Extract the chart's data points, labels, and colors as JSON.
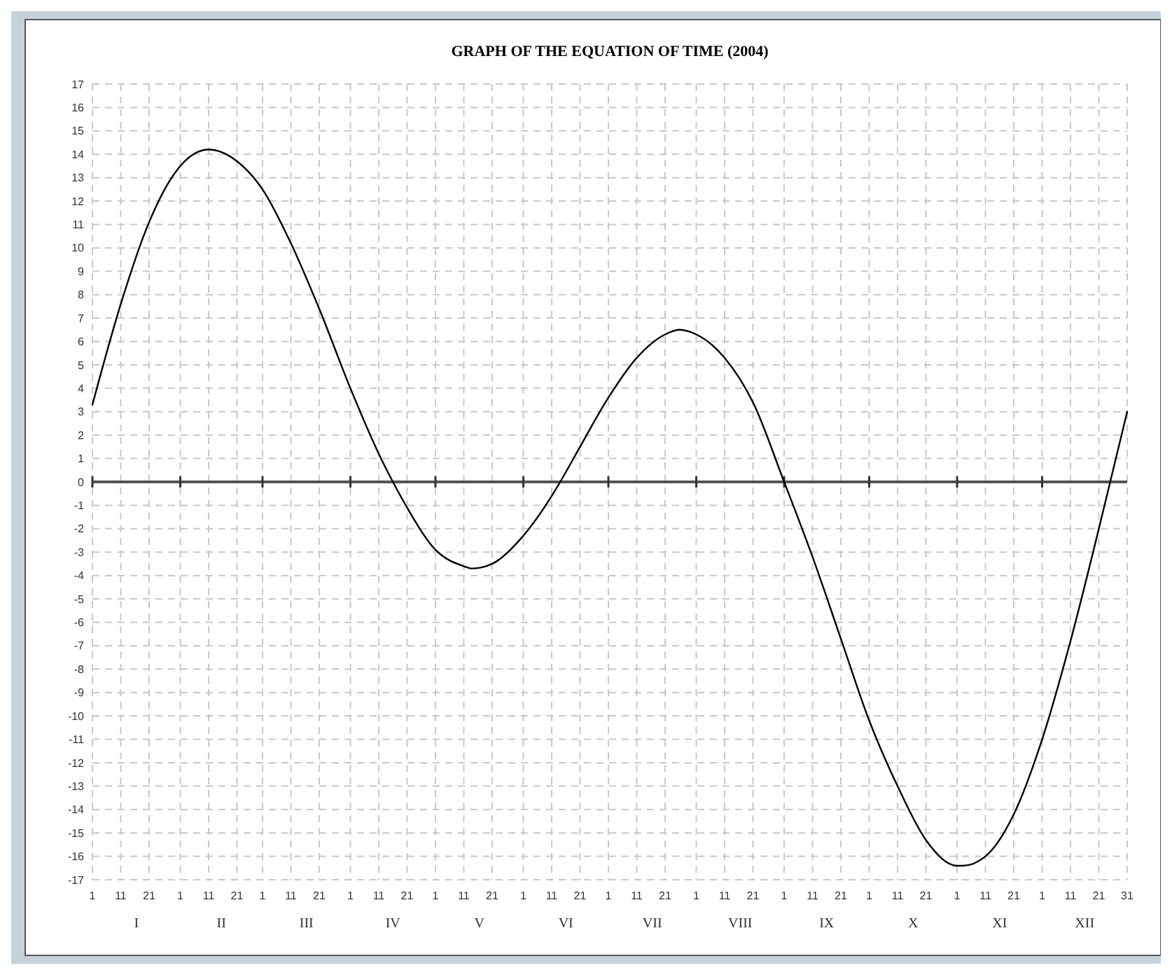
{
  "chart_data": {
    "type": "line",
    "title": "GRAPH OF THE EQUATION OF TIME (2004)",
    "x": [
      "2004-01-01",
      "2004-01-11",
      "2004-01-21",
      "2004-02-01",
      "2004-02-11",
      "2004-02-21",
      "2004-03-01",
      "2004-03-11",
      "2004-03-21",
      "2004-04-01",
      "2004-04-11",
      "2004-04-16",
      "2004-04-21",
      "2004-05-01",
      "2004-05-11",
      "2004-05-14",
      "2004-05-21",
      "2004-06-01",
      "2004-06-11",
      "2004-06-14",
      "2004-06-21",
      "2004-07-01",
      "2004-07-11",
      "2004-07-21",
      "2004-07-26",
      "2004-08-01",
      "2004-08-11",
      "2004-08-21",
      "2004-09-01",
      "2004-09-11",
      "2004-09-21",
      "2004-10-01",
      "2004-10-11",
      "2004-10-21",
      "2004-11-01",
      "2004-11-03",
      "2004-11-11",
      "2004-11-21",
      "2004-12-01",
      "2004-12-11",
      "2004-12-21",
      "2004-12-25",
      "2004-12-31"
    ],
    "series": [
      {
        "color": "#000000",
        "values": [
          3.3,
          7.6,
          11.1,
          13.5,
          14.2,
          13.7,
          12.5,
          10.2,
          7.4,
          4.0,
          1.2,
          0.0,
          -1.1,
          -2.9,
          -3.6,
          -3.7,
          -3.5,
          -2.3,
          -0.6,
          0.0,
          1.5,
          3.6,
          5.3,
          6.3,
          6.5,
          6.3,
          5.3,
          3.4,
          0.0,
          -3.2,
          -6.7,
          -10.2,
          -13.0,
          -15.3,
          -16.4,
          -16.4,
          -16.0,
          -14.2,
          -11.0,
          -6.8,
          -2.0,
          0.0,
          3.0
        ]
      }
    ],
    "xlim": [
      "2004-01-01",
      "2004-12-31"
    ],
    "xticks": [
      {
        "value": "2004-01-01",
        "label": "1"
      },
      {
        "value": "2004-01-11",
        "label": "11"
      },
      {
        "value": "2004-01-21",
        "label": "21"
      },
      {
        "value": "2004-02-01",
        "label": "1"
      },
      {
        "value": "2004-02-11",
        "label": "11"
      },
      {
        "value": "2004-02-21",
        "label": "21"
      },
      {
        "value": "2004-03-01",
        "label": "1"
      },
      {
        "value": "2004-03-11",
        "label": "11"
      },
      {
        "value": "2004-03-21",
        "label": "21"
      },
      {
        "value": "2004-04-01",
        "label": "1"
      },
      {
        "value": "2004-04-11",
        "label": "11"
      },
      {
        "value": "2004-04-21",
        "label": "21"
      },
      {
        "value": "2004-05-01",
        "label": "1"
      },
      {
        "value": "2004-05-11",
        "label": "11"
      },
      {
        "value": "2004-05-21",
        "label": "21"
      },
      {
        "value": "2004-06-01",
        "label": "1"
      },
      {
        "value": "2004-06-11",
        "label": "11"
      },
      {
        "value": "2004-06-21",
        "label": "21"
      },
      {
        "value": "2004-07-01",
        "label": "1"
      },
      {
        "value": "2004-07-11",
        "label": "11"
      },
      {
        "value": "2004-07-21",
        "label": "21"
      },
      {
        "value": "2004-08-01",
        "label": "1"
      },
      {
        "value": "2004-08-11",
        "label": "11"
      },
      {
        "value": "2004-08-21",
        "label": "21"
      },
      {
        "value": "2004-09-01",
        "label": "1"
      },
      {
        "value": "2004-09-11",
        "label": "11"
      },
      {
        "value": "2004-09-21",
        "label": "21"
      },
      {
        "value": "2004-10-01",
        "label": "1"
      },
      {
        "value": "2004-10-11",
        "label": "11"
      },
      {
        "value": "2004-10-21",
        "label": "21"
      },
      {
        "value": "2004-11-01",
        "label": "1"
      },
      {
        "value": "2004-11-11",
        "label": "11"
      },
      {
        "value": "2004-11-21",
        "label": "21"
      },
      {
        "value": "2004-12-01",
        "label": "1"
      },
      {
        "value": "2004-12-11",
        "label": "11"
      },
      {
        "value": "2004-12-21",
        "label": "21"
      },
      {
        "value": "2004-12-31",
        "label": "31"
      }
    ],
    "annotations": [
      "I",
      "II",
      "III",
      "IV",
      "V",
      "VI",
      "VII",
      "VIII",
      "IX",
      "X",
      "XI",
      "XII"
    ],
    "ylim": [
      -17,
      17
    ],
    "yticks": [
      -17,
      -16,
      -15,
      -14,
      -13,
      -12,
      -11,
      -10,
      -9,
      -8,
      -7,
      -6,
      -5,
      -4,
      -3,
      -2,
      -1,
      0,
      1,
      2,
      3,
      4,
      5,
      6,
      7,
      8,
      9,
      10,
      11,
      12,
      13,
      14,
      15,
      16,
      17
    ],
    "grid": true,
    "marker": "none",
    "line_style": "solid"
  }
}
